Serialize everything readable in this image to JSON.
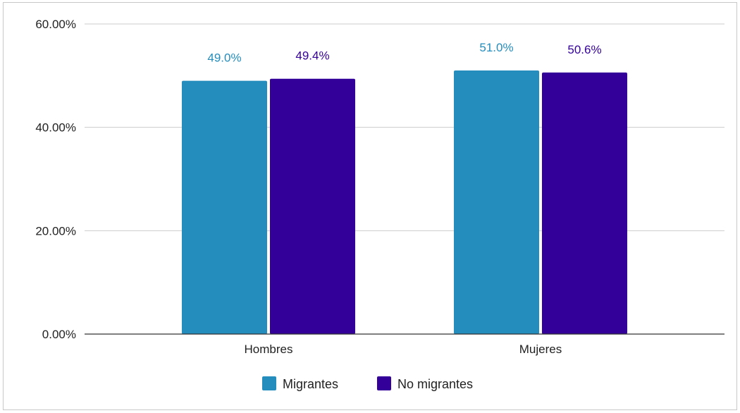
{
  "chart_data": {
    "type": "bar",
    "title": "",
    "xlabel": "",
    "ylabel": "",
    "categories": [
      "Hombres",
      "Mujeres"
    ],
    "series": [
      {
        "name": "Migrantes",
        "values": [
          49.0,
          51.0
        ],
        "labels": [
          "49.0%",
          "51.0%"
        ],
        "color": "#248dbd"
      },
      {
        "name": "No migrantes",
        "values": [
          49.4,
          50.6
        ],
        "labels": [
          "49.4%",
          "50.6%"
        ],
        "color": "#330099"
      }
    ],
    "ylim": [
      0,
      60
    ],
    "yticks": [
      0,
      20,
      40,
      60
    ],
    "ytick_labels": [
      "0.00%",
      "20.00%",
      "40.00%",
      "60.00%"
    ],
    "grid": true,
    "legend_position": "bottom"
  }
}
